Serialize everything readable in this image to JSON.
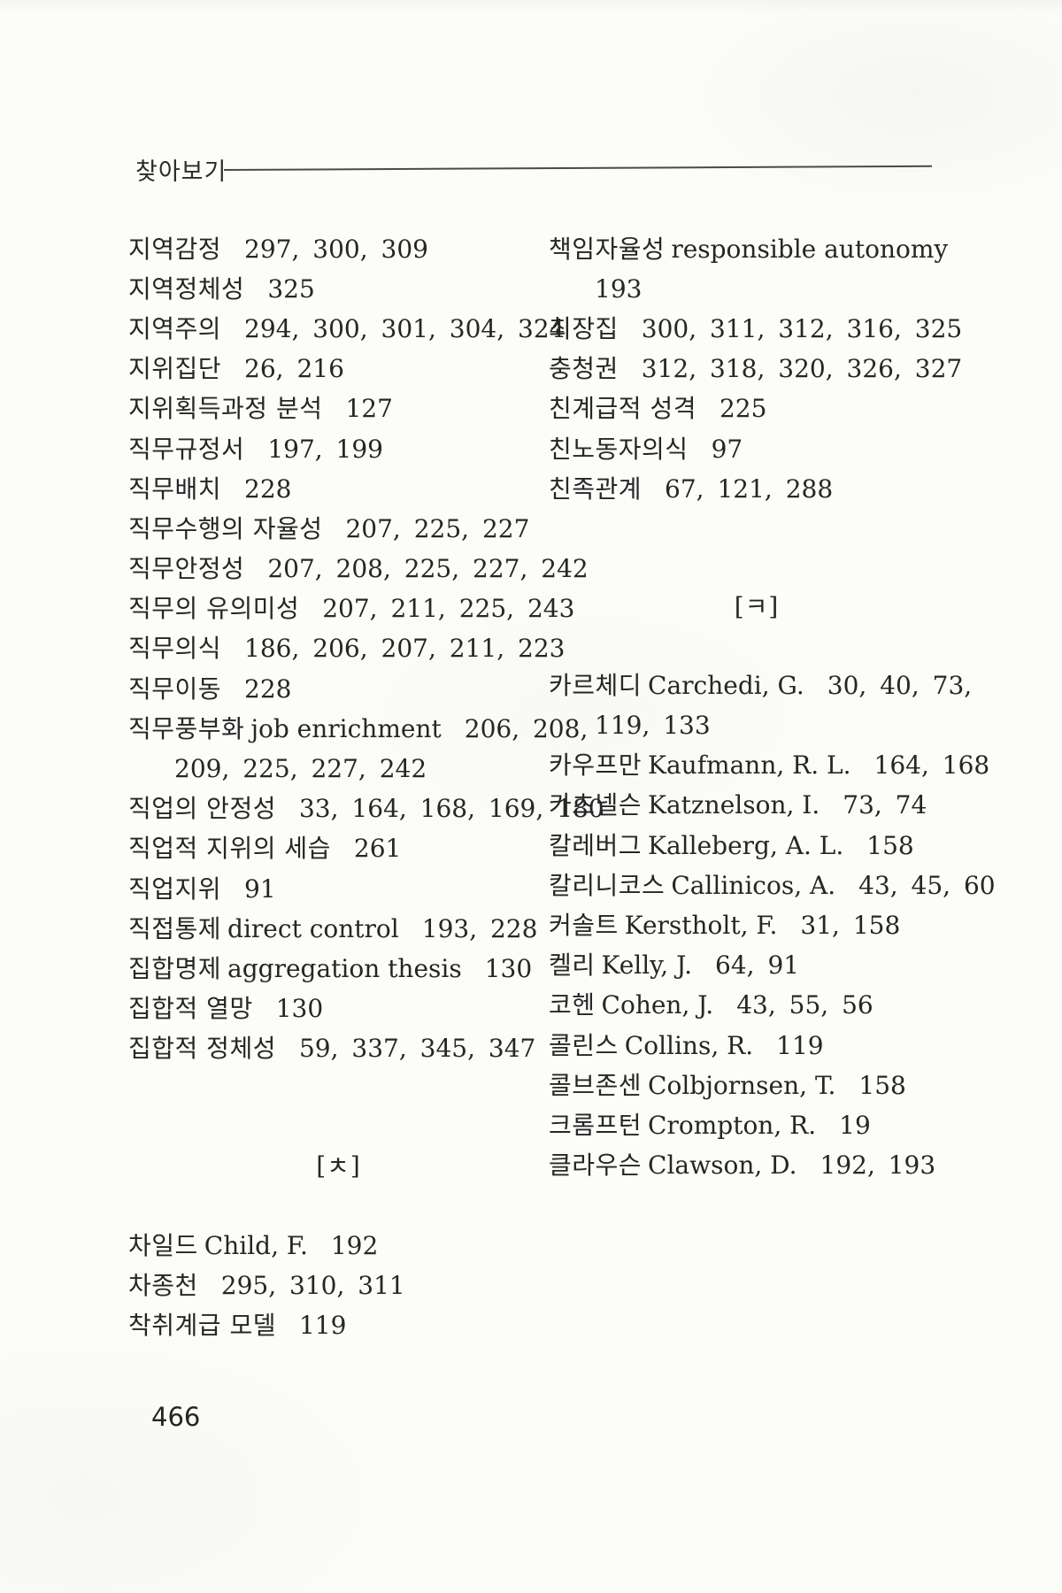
{
  "page": {
    "header_title": "찾아보기",
    "page_number": "466"
  },
  "index": {
    "left_column": [
      {
        "kind": "entry",
        "term": "지역감정",
        "pages": "297, 300, 309"
      },
      {
        "kind": "entry",
        "term": "지역정체성",
        "pages": "325"
      },
      {
        "kind": "entry",
        "term": "지역주의",
        "pages": "294, 300, 301, 304, 324"
      },
      {
        "kind": "entry",
        "term": "지위집단",
        "pages": "26, 216"
      },
      {
        "kind": "entry",
        "term": "지위획득과정 분석",
        "pages": "127"
      },
      {
        "kind": "entry",
        "term": "직무규정서",
        "pages": "197, 199"
      },
      {
        "kind": "entry",
        "term": "직무배치",
        "pages": "228"
      },
      {
        "kind": "entry",
        "term": "직무수행의 자율성",
        "pages": "207, 225, 227"
      },
      {
        "kind": "entry",
        "term": "직무안정성",
        "pages": "207, 208, 225, 227, 242"
      },
      {
        "kind": "entry",
        "term": "직무의 유의미성",
        "pages": "207, 211, 225, 243"
      },
      {
        "kind": "entry",
        "term": "직무의식",
        "pages": "186, 206, 207, 211, 223"
      },
      {
        "kind": "entry",
        "term": "직무이동",
        "pages": "228"
      },
      {
        "kind": "entry",
        "term": "직무풍부화",
        "latin": "job enrichment",
        "pages": "206, 208,"
      },
      {
        "kind": "continuation",
        "pages": "209, 225, 227, 242"
      },
      {
        "kind": "entry",
        "term": "직업의 안정성",
        "pages": "33, 164, 168, 169, 180"
      },
      {
        "kind": "entry",
        "term": "직업적 지위의 세습",
        "pages": "261"
      },
      {
        "kind": "entry",
        "term": "직업지위",
        "pages": "91"
      },
      {
        "kind": "entry",
        "term": "직접통제",
        "latin": "direct control",
        "pages": "193, 228"
      },
      {
        "kind": "entry",
        "term": "집합명제",
        "latin": "aggregation thesis",
        "pages": "130"
      },
      {
        "kind": "entry",
        "term": "집합적 열망",
        "pages": "130"
      },
      {
        "kind": "entry",
        "term": "집합적 정체성",
        "pages": "59, 337, 345, 347"
      },
      {
        "kind": "section",
        "label": "[ㅊ]"
      },
      {
        "kind": "entry",
        "term": "차일드",
        "latin": "Child, F.",
        "pages": "192"
      },
      {
        "kind": "entry",
        "term": "차종천",
        "pages": "295, 310, 311"
      },
      {
        "kind": "entry",
        "term": "착취계급 모델",
        "pages": "119"
      }
    ],
    "right_column": [
      {
        "kind": "entry",
        "term": "책임자율성",
        "latin": "responsible autonomy"
      },
      {
        "kind": "continuation",
        "pages": "193"
      },
      {
        "kind": "entry",
        "term": "최장집",
        "pages": "300, 311, 312, 316, 325"
      },
      {
        "kind": "entry",
        "term": "충청권",
        "pages": "312, 318, 320, 326, 327"
      },
      {
        "kind": "entry",
        "term": "친계급적 성격",
        "pages": "225"
      },
      {
        "kind": "entry",
        "term": "친노동자의식",
        "pages": "97"
      },
      {
        "kind": "entry",
        "term": "친족관계",
        "pages": "67, 121, 288"
      },
      {
        "kind": "section",
        "label": "[ㅋ]"
      },
      {
        "kind": "entry",
        "term": "카르체디",
        "latin": "Carchedi, G.",
        "pages": "30, 40, 73,"
      },
      {
        "kind": "continuation",
        "pages": "119, 133"
      },
      {
        "kind": "entry",
        "term": "카우프만",
        "latin": "Kaufmann, R. L.",
        "pages": "164, 168"
      },
      {
        "kind": "entry",
        "term": "카츠넬슨",
        "latin": "Katznelson, I.",
        "pages": "73, 74"
      },
      {
        "kind": "entry",
        "term": "칼레버그",
        "latin": "Kalleberg, A. L.",
        "pages": "158"
      },
      {
        "kind": "entry",
        "term": "칼리니코스",
        "latin": "Callinicos, A.",
        "pages": "43, 45, 60"
      },
      {
        "kind": "entry",
        "term": "커솔트",
        "latin": "Kerstholt, F.",
        "pages": "31, 158"
      },
      {
        "kind": "entry",
        "term": "켈리",
        "latin": "Kelly, J.",
        "pages": "64, 91"
      },
      {
        "kind": "entry",
        "term": "코헨",
        "latin": "Cohen, J.",
        "pages": "43, 55, 56"
      },
      {
        "kind": "entry",
        "term": "콜린스",
        "latin": "Collins, R.",
        "pages": "119"
      },
      {
        "kind": "entry",
        "term": "콜브존센",
        "latin": "Colbjornsen, T.",
        "pages": "158"
      },
      {
        "kind": "entry",
        "term": "크롬프턴",
        "latin": "Crompton, R.",
        "pages": "19"
      },
      {
        "kind": "entry",
        "term": "클라우슨",
        "latin": "Clawson, D.",
        "pages": "192, 193"
      }
    ]
  }
}
